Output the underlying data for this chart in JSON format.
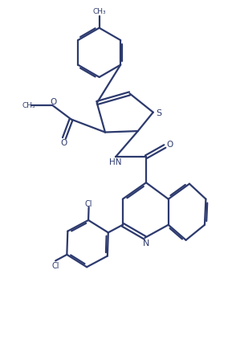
{
  "bg_color": "#ffffff",
  "line_color": "#2d3a6e",
  "line_width": 1.6,
  "figsize": [
    2.94,
    4.39
  ],
  "dpi": 100,
  "xlim": [
    0,
    10
  ],
  "ylim": [
    0,
    15
  ]
}
